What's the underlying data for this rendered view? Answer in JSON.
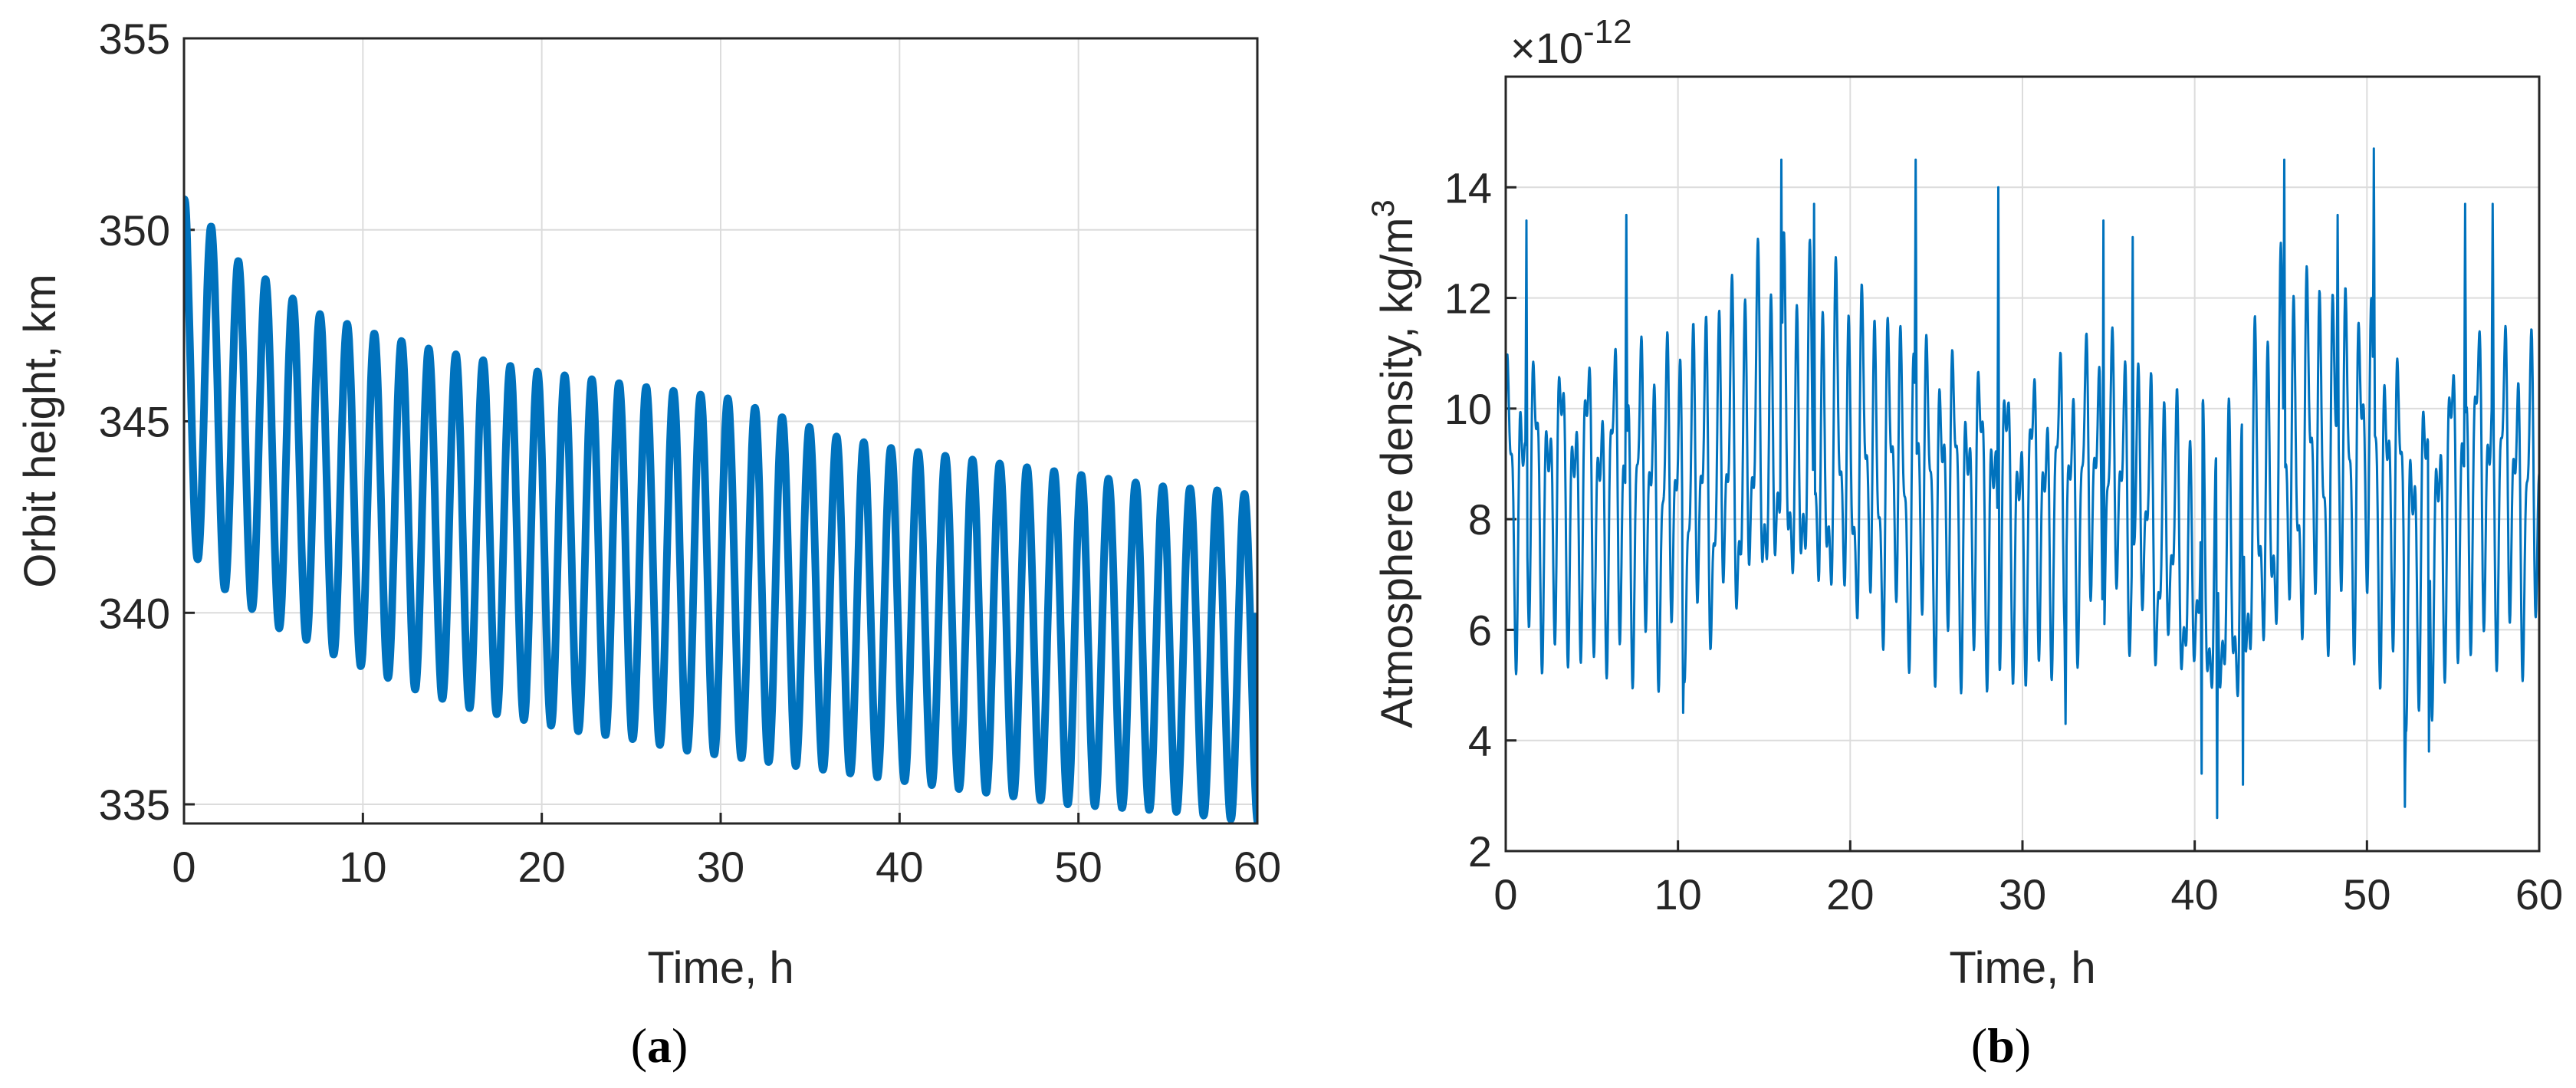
{
  "chart_data": [
    {
      "id": "a",
      "type": "line",
      "panel_label": {
        "open": "(",
        "letter": "a",
        "close": ")"
      },
      "title": "",
      "xlabel": "Time, h",
      "ylabel": "Orbit height, km",
      "xlim": [
        0,
        60
      ],
      "ylim": [
        334.5,
        355
      ],
      "xticks": [
        0,
        10,
        20,
        30,
        40,
        50,
        60
      ],
      "xtick_labels": [
        "0",
        "10",
        "20",
        "30",
        "40",
        "50",
        "60"
      ],
      "yticks": [
        335,
        340,
        345,
        350,
        355
      ],
      "ytick_labels": [
        "335",
        "340",
        "345",
        "350",
        "355"
      ],
      "grid": true,
      "line_color": "#0072BD",
      "series": [
        {
          "name": "Orbit height",
          "model": "oscillation",
          "period_h": 1.52,
          "start_value": 350.8,
          "max_envelope": {
            "t": [
              0,
              1.5,
              3,
              4.6,
              6.1,
              7.6,
              10.6,
              13.7,
              16.7,
              19.8,
              22.8,
              25.8,
              30.4,
              33.5,
              36.5,
              39.6,
              42.6,
              45.6,
              48.7,
              51.7,
              54.8,
              57.8,
              59.4
            ],
            "v": [
              350.8,
              350.1,
              349.2,
              348.7,
              348.2,
              347.8,
              347.3,
              346.9,
              346.6,
              346.3,
              346.1,
              345.9,
              345.6,
              345.1,
              344.6,
              344.3,
              344.1,
              343.9,
              343.7,
              343.5,
              343.3,
              343.2,
              343.1
            ]
          },
          "min_envelope": {
            "t": [
              0.75,
              2.3,
              3.8,
              5.3,
              6.8,
              8.4,
              9.9,
              12.9,
              16.0,
              19.0,
              22.1,
              25.1,
              28.1,
              31.2,
              34.2,
              37.3,
              40.3,
              43.3,
              46.4,
              49.4,
              52.5,
              55.5,
              57.1,
              58.6,
              60
            ],
            "v": [
              341.4,
              340.6,
              340.1,
              339.6,
              339.3,
              338.9,
              338.6,
              338.0,
              337.5,
              337.2,
              336.9,
              336.7,
              336.4,
              336.2,
              336.0,
              335.8,
              335.6,
              335.4,
              335.2,
              335.0,
              334.9,
              334.8,
              334.7,
              334.6,
              334.5
            ]
          },
          "end_value": 340.0
        }
      ]
    },
    {
      "id": "b",
      "type": "line",
      "panel_label": {
        "open": "(",
        "letter": "b",
        "close": ")"
      },
      "title": "",
      "xlabel": "Time, h",
      "ylabel": "Atmosphere density, kg/m",
      "ylabel_superscript": "3",
      "exponent_label": "×10",
      "exponent_superscript": "-12",
      "xlim": [
        0,
        60
      ],
      "ylim": [
        2,
        16
      ],
      "xticks": [
        0,
        10,
        20,
        30,
        40,
        50,
        60
      ],
      "xtick_labels": [
        "0",
        "10",
        "20",
        "30",
        "40",
        "50",
        "60"
      ],
      "yticks": [
        2,
        4,
        6,
        8,
        10,
        12,
        14
      ],
      "ytick_labels": [
        "2",
        "4",
        "6",
        "8",
        "10",
        "12",
        "14"
      ],
      "grid": true,
      "line_color": "#0072BD",
      "series": [
        {
          "name": "Atmosphere density",
          "model": "fast-oscillation",
          "cycle_h": 0.76,
          "mean_profile": {
            "t": [
              0,
              10,
              15,
              20,
              30,
              35,
              40,
              42,
              45,
              50,
              53,
              56,
              60
            ],
            "v": [
              8.5,
              8.3,
              9.3,
              9.0,
              8.0,
              8.8,
              7.0,
              6.5,
              9.0,
              9.2,
              7.4,
              8.8,
              8.4
            ]
          },
          "amplitude_profile": {
            "t": [
              0,
              15,
              30,
              40,
              45,
              50,
              55,
              60
            ],
            "v": [
              2.2,
              2.6,
              2.3,
              2.1,
              2.8,
              2.6,
              2.4,
              2.4
            ]
          },
          "peaks": [
            {
              "t": 1.2,
              "v": 13.4
            },
            {
              "t": 7.0,
              "v": 13.5
            },
            {
              "t": 16.0,
              "v": 14.5
            },
            {
              "t": 17.9,
              "v": 13.7
            },
            {
              "t": 23.8,
              "v": 14.5
            },
            {
              "t": 28.6,
              "v": 14.0
            },
            {
              "t": 34.7,
              "v": 13.4
            },
            {
              "t": 36.4,
              "v": 13.1
            },
            {
              "t": 45.2,
              "v": 14.5
            },
            {
              "t": 48.3,
              "v": 13.5
            },
            {
              "t": 50.4,
              "v": 14.7
            },
            {
              "t": 55.7,
              "v": 13.7
            },
            {
              "t": 57.3,
              "v": 13.7
            }
          ],
          "troughs": [
            {
              "t": 41.3,
              "v": 2.6
            },
            {
              "t": 52.2,
              "v": 2.8
            },
            {
              "t": 40.4,
              "v": 3.4
            },
            {
              "t": 42.8,
              "v": 3.2
            },
            {
              "t": 53.6,
              "v": 3.8
            },
            {
              "t": 32.5,
              "v": 4.3
            },
            {
              "t": 10.3,
              "v": 4.5
            }
          ]
        }
      ]
    }
  ]
}
